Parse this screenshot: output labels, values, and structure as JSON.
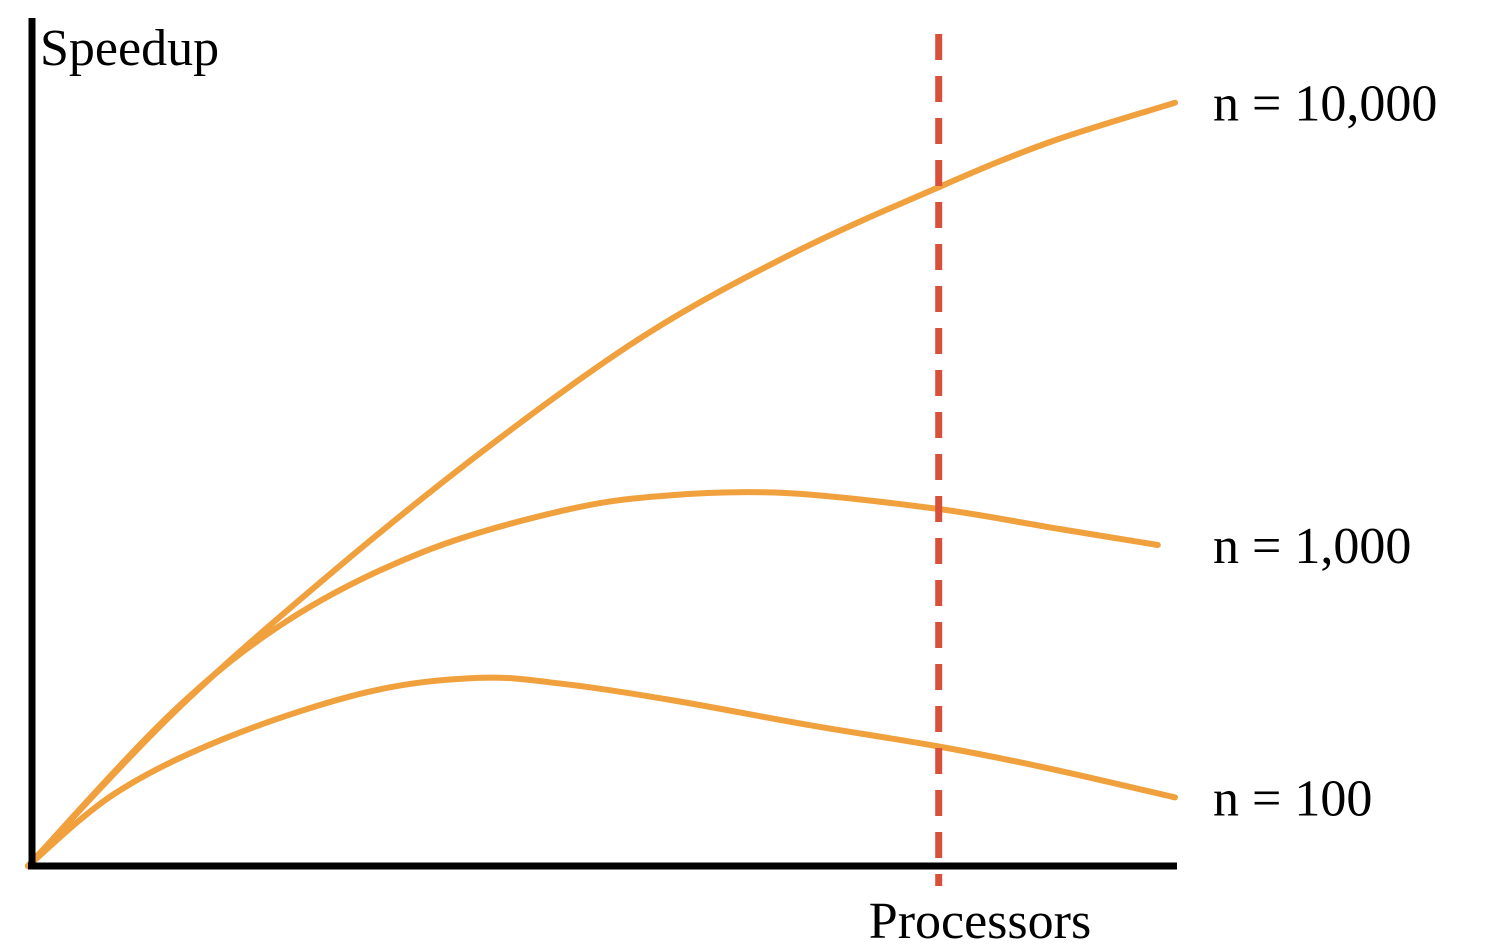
{
  "chart_data": {
    "type": "line",
    "title": "",
    "xlabel": "Processors",
    "ylabel": "Speedup",
    "xlim": [
      0,
      100
    ],
    "ylim": [
      0,
      100
    ],
    "grid": false,
    "legend": "none",
    "series": [
      {
        "name": "n = 10,000",
        "color": "#F0A03C",
        "x": [
          0,
          12.6,
          25.8,
          40,
          53.8,
          66.7,
          79.4,
          89.1,
          100
        ],
        "y": [
          0,
          18.2,
          34.3,
          50,
          63.5,
          73.3,
          81.2,
          86.6,
          91.3
        ]
      },
      {
        "name": "n = 1,000",
        "color": "#F0A03C",
        "x": [
          0,
          12.6,
          22.8,
          34.5,
          46.6,
          55.5,
          66.2,
          79.4,
          89.1,
          98.5
        ],
        "y": [
          0,
          18.4,
          29.5,
          37.6,
          42.5,
          44.3,
          44.6,
          42.7,
          40.5,
          38.4
        ]
      },
      {
        "name": "n = 100",
        "color": "#F0A03C",
        "x": [
          0,
          7.6,
          17.4,
          29.6,
          39.2,
          46.6,
          56.3,
          67.9,
          79.4,
          88.9,
          100
        ],
        "y": [
          0,
          8.7,
          15.4,
          20.8,
          22.5,
          21.8,
          19.8,
          16.9,
          14.3,
          11.7,
          8.2
        ]
      }
    ],
    "annotations": [
      {
        "type": "vertical-dashed-line",
        "x": 79.4,
        "color": "#D9503A"
      }
    ]
  }
}
